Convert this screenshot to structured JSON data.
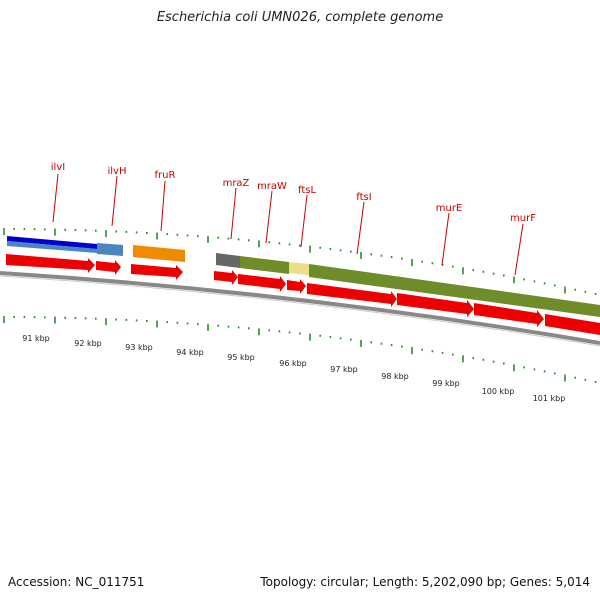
{
  "header": {
    "title": "Escherichia coli UMN026, complete genome"
  },
  "footer": {
    "accession": "Accession: NC_011751",
    "summary": "Topology: circular; Length: 5,202,090 bp; Genes: 5,014"
  },
  "gene_labels": [
    "ilvI",
    "ilvH",
    "fruR",
    "mraZ",
    "mraW",
    "ftsL",
    "ftsI",
    "murE",
    "murF"
  ],
  "position_ticks": [
    "91 kbp",
    "92 kbp",
    "93 kbp",
    "94 kbp",
    "95 kbp",
    "96 kbp",
    "97 kbp",
    "98 kbp",
    "99 kbp",
    "100 kbp",
    "101 kbp"
  ],
  "colors": {
    "label": "#cc0000",
    "tick": "#2e8b2e",
    "cds_arrow": "#ee0000",
    "backbone": "#888888",
    "ilvI_bar": "#0000cc",
    "ilvH_bar": "#4a86c0",
    "fruR_bar": "#f28a00",
    "mraZ_bar": "#666666",
    "operon_bar": "#6e8c2a",
    "ftsL_bar": "#eedd88"
  }
}
